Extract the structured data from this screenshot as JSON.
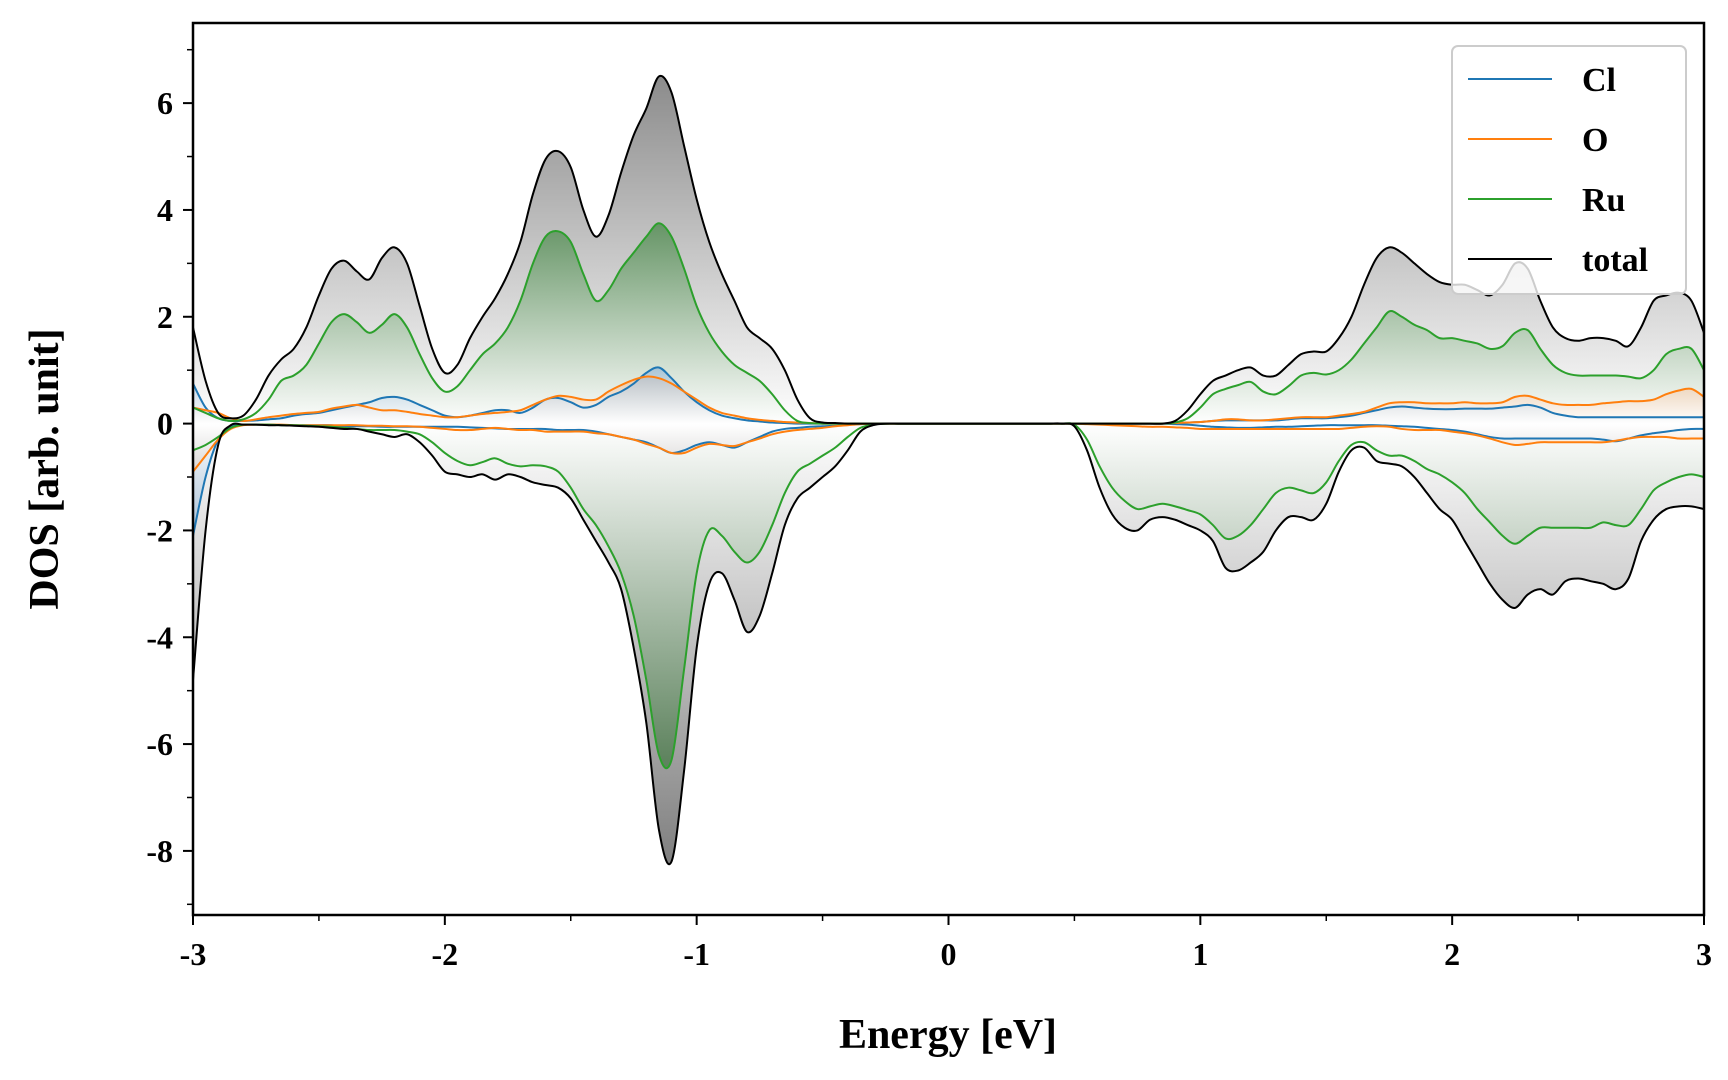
{
  "chart_data": {
    "type": "area",
    "title": "",
    "xlabel": "Energy [eV]",
    "ylabel": "DOS [arb. unit]",
    "xlim": [
      -3,
      3
    ],
    "ylim": [
      -9.2,
      7.5
    ],
    "xticks": [
      -3,
      -2,
      -1,
      0,
      1,
      2,
      3
    ],
    "xtick_labels": [
      "-3",
      "-2",
      "-1",
      "0",
      "1",
      "2",
      "3"
    ],
    "yticks": [
      -8,
      -6,
      -4,
      -2,
      0,
      2,
      4,
      6
    ],
    "ytick_labels": [
      "-8",
      "-6",
      "-4",
      "-2",
      "0",
      "2",
      "4",
      "6"
    ],
    "legend_position": "top-right",
    "grid": false,
    "x": [
      -3.0,
      -2.95,
      -2.9,
      -2.85,
      -2.8,
      -2.75,
      -2.7,
      -2.65,
      -2.6,
      -2.55,
      -2.5,
      -2.45,
      -2.4,
      -2.35,
      -2.3,
      -2.25,
      -2.2,
      -2.15,
      -2.1,
      -2.05,
      -2.0,
      -1.95,
      -1.9,
      -1.85,
      -1.8,
      -1.75,
      -1.7,
      -1.65,
      -1.6,
      -1.55,
      -1.5,
      -1.45,
      -1.4,
      -1.35,
      -1.3,
      -1.25,
      -1.2,
      -1.15,
      -1.1,
      -1.05,
      -1.0,
      -0.95,
      -0.9,
      -0.85,
      -0.8,
      -0.75,
      -0.7,
      -0.65,
      -0.6,
      -0.55,
      -0.5,
      -0.45,
      -0.4,
      -0.35,
      -0.3,
      -0.25,
      -0.2,
      -0.15,
      -0.1,
      -0.05,
      0.0,
      0.05,
      0.1,
      0.15,
      0.2,
      0.25,
      0.3,
      0.35,
      0.4,
      0.45,
      0.5,
      0.55,
      0.6,
      0.65,
      0.7,
      0.75,
      0.8,
      0.85,
      0.9,
      0.95,
      1.0,
      1.05,
      1.1,
      1.15,
      1.2,
      1.25,
      1.3,
      1.35,
      1.4,
      1.45,
      1.5,
      1.55,
      1.6,
      1.65,
      1.7,
      1.75,
      1.8,
      1.85,
      1.9,
      1.95,
      2.0,
      2.05,
      2.1,
      2.15,
      2.2,
      2.25,
      2.3,
      2.35,
      2.4,
      2.45,
      2.5,
      2.55,
      2.6,
      2.65,
      2.7,
      2.75,
      2.8,
      2.85,
      2.9,
      2.95,
      3.0
    ],
    "series": [
      {
        "name": "Cl",
        "color": "#1f77b4",
        "up": [
          0.75,
          0.3,
          0.1,
          0.05,
          0.05,
          0.06,
          0.08,
          0.1,
          0.15,
          0.18,
          0.2,
          0.25,
          0.3,
          0.35,
          0.4,
          0.48,
          0.5,
          0.45,
          0.35,
          0.25,
          0.15,
          0.12,
          0.15,
          0.2,
          0.25,
          0.25,
          0.2,
          0.3,
          0.45,
          0.48,
          0.4,
          0.3,
          0.35,
          0.5,
          0.6,
          0.75,
          0.95,
          1.05,
          0.85,
          0.6,
          0.4,
          0.25,
          0.15,
          0.1,
          0.06,
          0.04,
          0.02,
          0.01,
          0,
          0,
          0,
          0,
          0,
          0,
          0,
          0,
          0,
          0,
          0,
          0,
          0,
          0,
          0,
          0,
          0,
          0,
          0,
          0,
          0,
          0,
          0,
          0,
          0,
          0,
          0,
          0,
          0,
          0,
          0.01,
          0.02,
          0.03,
          0.05,
          0.06,
          0.06,
          0.06,
          0.06,
          0.06,
          0.08,
          0.1,
          0.1,
          0.1,
          0.12,
          0.15,
          0.2,
          0.25,
          0.3,
          0.32,
          0.3,
          0.28,
          0.27,
          0.27,
          0.28,
          0.28,
          0.28,
          0.3,
          0.32,
          0.35,
          0.3,
          0.2,
          0.15,
          0.12,
          0.12,
          0.12,
          0.12,
          0.12,
          0.12,
          0.12,
          0.12,
          0.12,
          0.12,
          0.12
        ],
        "down": [
          -2.1,
          -1.0,
          -0.3,
          -0.05,
          -0.02,
          -0.02,
          -0.02,
          -0.03,
          -0.03,
          -0.03,
          -0.03,
          -0.03,
          -0.05,
          -0.05,
          -0.05,
          -0.06,
          -0.06,
          -0.06,
          -0.06,
          -0.06,
          -0.06,
          -0.06,
          -0.07,
          -0.08,
          -0.09,
          -0.1,
          -0.1,
          -0.1,
          -0.1,
          -0.12,
          -0.12,
          -0.12,
          -0.15,
          -0.2,
          -0.25,
          -0.3,
          -0.35,
          -0.45,
          -0.55,
          -0.5,
          -0.4,
          -0.35,
          -0.4,
          -0.45,
          -0.35,
          -0.25,
          -0.15,
          -0.1,
          -0.08,
          -0.06,
          -0.05,
          -0.04,
          -0.02,
          -0.01,
          0,
          0,
          0,
          0,
          0,
          0,
          0,
          0,
          0,
          0,
          0,
          0,
          0,
          0,
          0,
          0,
          0,
          0,
          0,
          0,
          0,
          0,
          0,
          0,
          -0.01,
          -0.02,
          -0.04,
          -0.06,
          -0.07,
          -0.08,
          -0.08,
          -0.07,
          -0.06,
          -0.06,
          -0.05,
          -0.04,
          -0.03,
          -0.03,
          -0.03,
          -0.03,
          -0.03,
          -0.04,
          -0.05,
          -0.06,
          -0.08,
          -0.1,
          -0.12,
          -0.15,
          -0.2,
          -0.25,
          -0.28,
          -0.28,
          -0.28,
          -0.28,
          -0.28,
          -0.28,
          -0.28,
          -0.28,
          -0.3,
          -0.33,
          -0.28,
          -0.22,
          -0.18,
          -0.15,
          -0.12,
          -0.1,
          -0.1
        ]
      },
      {
        "name": "O",
        "color": "#ff7f0e",
        "up": [
          0.3,
          0.25,
          0.2,
          0.1,
          0.05,
          0.08,
          0.12,
          0.15,
          0.18,
          0.2,
          0.22,
          0.28,
          0.32,
          0.35,
          0.3,
          0.25,
          0.25,
          0.22,
          0.18,
          0.15,
          0.12,
          0.12,
          0.15,
          0.18,
          0.2,
          0.22,
          0.25,
          0.35,
          0.45,
          0.52,
          0.5,
          0.45,
          0.45,
          0.6,
          0.72,
          0.82,
          0.88,
          0.85,
          0.75,
          0.6,
          0.45,
          0.3,
          0.2,
          0.15,
          0.1,
          0.07,
          0.05,
          0.03,
          0.02,
          0.01,
          0,
          0,
          0,
          0,
          0,
          0,
          0,
          0,
          0,
          0,
          0,
          0,
          0,
          0,
          0,
          0,
          0,
          0,
          0,
          0,
          0,
          0,
          0,
          0,
          0,
          0,
          0,
          0,
          0.01,
          0.02,
          0.03,
          0.05,
          0.08,
          0.08,
          0.06,
          0.06,
          0.08,
          0.1,
          0.12,
          0.12,
          0.12,
          0.15,
          0.18,
          0.22,
          0.3,
          0.38,
          0.4,
          0.4,
          0.38,
          0.38,
          0.38,
          0.4,
          0.38,
          0.38,
          0.4,
          0.5,
          0.52,
          0.45,
          0.38,
          0.35,
          0.35,
          0.35,
          0.38,
          0.4,
          0.42,
          0.42,
          0.45,
          0.55,
          0.62,
          0.65,
          0.5
        ],
        "down": [
          -0.9,
          -0.6,
          -0.3,
          -0.1,
          -0.03,
          -0.02,
          -0.02,
          -0.02,
          -0.03,
          -0.03,
          -0.03,
          -0.03,
          -0.03,
          -0.03,
          -0.04,
          -0.04,
          -0.05,
          -0.05,
          -0.06,
          -0.08,
          -0.1,
          -0.12,
          -0.12,
          -0.1,
          -0.08,
          -0.1,
          -0.12,
          -0.12,
          -0.15,
          -0.15,
          -0.15,
          -0.15,
          -0.18,
          -0.2,
          -0.25,
          -0.3,
          -0.38,
          -0.45,
          -0.55,
          -0.55,
          -0.45,
          -0.38,
          -0.4,
          -0.42,
          -0.35,
          -0.28,
          -0.2,
          -0.15,
          -0.12,
          -0.1,
          -0.08,
          -0.05,
          -0.03,
          -0.01,
          0,
          0,
          0,
          0,
          0,
          0,
          0,
          0,
          0,
          0,
          0,
          0,
          0,
          0,
          0,
          0,
          0,
          -0.01,
          -0.02,
          -0.03,
          -0.04,
          -0.05,
          -0.06,
          -0.06,
          -0.07,
          -0.08,
          -0.1,
          -0.1,
          -0.1,
          -0.1,
          -0.1,
          -0.1,
          -0.1,
          -0.1,
          -0.1,
          -0.1,
          -0.1,
          -0.1,
          -0.08,
          -0.06,
          -0.05,
          -0.06,
          -0.1,
          -0.12,
          -0.12,
          -0.12,
          -0.15,
          -0.18,
          -0.22,
          -0.28,
          -0.35,
          -0.4,
          -0.38,
          -0.35,
          -0.35,
          -0.35,
          -0.35,
          -0.35,
          -0.35,
          -0.32,
          -0.28,
          -0.25,
          -0.25,
          -0.25,
          -0.28,
          -0.28,
          -0.28
        ]
      },
      {
        "name": "Ru",
        "color": "#2ca02c",
        "up": [
          0.3,
          0.2,
          0.1,
          0.05,
          0.08,
          0.2,
          0.45,
          0.8,
          0.9,
          1.1,
          1.5,
          1.9,
          2.05,
          1.9,
          1.7,
          1.85,
          2.05,
          1.8,
          1.3,
          0.85,
          0.6,
          0.7,
          1.0,
          1.3,
          1.5,
          1.8,
          2.3,
          3.0,
          3.5,
          3.6,
          3.4,
          2.8,
          2.3,
          2.5,
          2.9,
          3.2,
          3.5,
          3.75,
          3.5,
          2.9,
          2.2,
          1.7,
          1.35,
          1.1,
          0.95,
          0.8,
          0.55,
          0.25,
          0.05,
          0.01,
          0,
          0,
          0,
          0,
          0,
          0,
          0,
          0,
          0,
          0,
          0,
          0,
          0,
          0,
          0,
          0,
          0,
          0,
          0,
          0,
          0,
          0,
          0,
          0,
          0,
          0,
          0,
          0,
          0.02,
          0.1,
          0.3,
          0.55,
          0.65,
          0.72,
          0.78,
          0.6,
          0.55,
          0.7,
          0.9,
          0.95,
          0.92,
          1.0,
          1.2,
          1.5,
          1.8,
          2.1,
          2.0,
          1.85,
          1.75,
          1.6,
          1.6,
          1.55,
          1.5,
          1.4,
          1.45,
          1.7,
          1.75,
          1.4,
          1.1,
          0.95,
          0.9,
          0.9,
          0.9,
          0.9,
          0.88,
          0.85,
          1.0,
          1.3,
          1.4,
          1.4,
          1.0
        ],
        "down": [
          -0.5,
          -0.4,
          -0.25,
          -0.08,
          -0.02,
          -0.02,
          -0.02,
          -0.03,
          -0.03,
          -0.04,
          -0.05,
          -0.06,
          -0.08,
          -0.1,
          -0.12,
          -0.12,
          -0.12,
          -0.15,
          -0.2,
          -0.35,
          -0.55,
          -0.7,
          -0.78,
          -0.72,
          -0.65,
          -0.75,
          -0.8,
          -0.78,
          -0.8,
          -0.9,
          -1.2,
          -1.6,
          -1.9,
          -2.3,
          -2.8,
          -3.6,
          -4.8,
          -6.2,
          -6.3,
          -4.6,
          -2.8,
          -2.0,
          -2.1,
          -2.4,
          -2.6,
          -2.4,
          -1.9,
          -1.3,
          -0.9,
          -0.75,
          -0.6,
          -0.45,
          -0.25,
          -0.08,
          -0.02,
          0,
          0,
          0,
          0,
          0,
          0,
          0,
          0,
          0,
          0,
          0,
          0,
          0,
          0,
          0,
          -0.02,
          -0.3,
          -0.8,
          -1.2,
          -1.45,
          -1.6,
          -1.55,
          -1.5,
          -1.55,
          -1.62,
          -1.7,
          -1.9,
          -2.15,
          -2.1,
          -1.9,
          -1.6,
          -1.3,
          -1.2,
          -1.25,
          -1.3,
          -1.1,
          -0.7,
          -0.4,
          -0.35,
          -0.5,
          -0.6,
          -0.6,
          -0.7,
          -0.85,
          -0.95,
          -1.1,
          -1.3,
          -1.6,
          -1.85,
          -2.1,
          -2.25,
          -2.1,
          -1.95,
          -1.95,
          -1.95,
          -1.95,
          -1.95,
          -1.85,
          -1.9,
          -1.9,
          -1.6,
          -1.25,
          -1.1,
          -1.0,
          -0.95,
          -1.0
        ]
      },
      {
        "name": "total",
        "color": "#000000",
        "up": [
          1.8,
          0.8,
          0.2,
          0.1,
          0.15,
          0.45,
          0.9,
          1.2,
          1.4,
          1.8,
          2.4,
          2.9,
          3.05,
          2.85,
          2.7,
          3.1,
          3.3,
          3.0,
          2.2,
          1.4,
          0.95,
          1.1,
          1.6,
          2.0,
          2.35,
          2.8,
          3.4,
          4.3,
          4.95,
          5.1,
          4.8,
          4.0,
          3.5,
          3.9,
          4.7,
          5.4,
          5.9,
          6.5,
          6.2,
          5.2,
          4.2,
          3.4,
          2.8,
          2.3,
          1.8,
          1.6,
          1.4,
          1.0,
          0.45,
          0.1,
          0.02,
          0.01,
          0,
          0,
          0,
          0,
          0,
          0,
          0,
          0,
          0,
          0,
          0,
          0,
          0,
          0,
          0,
          0,
          0,
          0,
          0,
          0,
          0,
          0,
          0,
          0,
          0,
          0,
          0.05,
          0.25,
          0.55,
          0.8,
          0.9,
          1.0,
          1.05,
          0.9,
          0.9,
          1.1,
          1.3,
          1.35,
          1.35,
          1.6,
          2.0,
          2.6,
          3.1,
          3.3,
          3.2,
          3.0,
          2.8,
          2.65,
          2.6,
          2.6,
          2.5,
          2.4,
          2.6,
          3.0,
          2.9,
          2.3,
          1.8,
          1.6,
          1.55,
          1.6,
          1.6,
          1.55,
          1.45,
          1.8,
          2.3,
          2.4,
          2.45,
          2.3,
          1.7
        ],
        "down": [
          -4.8,
          -2.0,
          -0.4,
          -0.03,
          -0.02,
          -0.02,
          -0.03,
          -0.03,
          -0.04,
          -0.05,
          -0.06,
          -0.08,
          -0.1,
          -0.1,
          -0.15,
          -0.2,
          -0.25,
          -0.2,
          -0.35,
          -0.6,
          -0.9,
          -0.95,
          -1.0,
          -0.95,
          -1.05,
          -0.95,
          -1.0,
          -1.1,
          -1.15,
          -1.2,
          -1.4,
          -1.8,
          -2.2,
          -2.6,
          -3.1,
          -4.2,
          -5.6,
          -7.6,
          -8.2,
          -6.5,
          -4.2,
          -3.0,
          -2.8,
          -3.3,
          -3.9,
          -3.6,
          -2.8,
          -1.9,
          -1.4,
          -1.2,
          -1.0,
          -0.8,
          -0.5,
          -0.15,
          -0.03,
          0,
          0,
          0,
          0,
          0,
          0,
          0,
          0,
          0,
          0,
          0,
          0,
          0,
          0,
          0,
          -0.05,
          -0.5,
          -1.2,
          -1.7,
          -1.95,
          -2.0,
          -1.8,
          -1.75,
          -1.8,
          -1.9,
          -2.0,
          -2.2,
          -2.7,
          -2.75,
          -2.6,
          -2.4,
          -2.0,
          -1.75,
          -1.75,
          -1.8,
          -1.5,
          -0.9,
          -0.5,
          -0.45,
          -0.7,
          -0.75,
          -0.8,
          -1.0,
          -1.3,
          -1.6,
          -1.8,
          -2.2,
          -2.6,
          -3.0,
          -3.3,
          -3.45,
          -3.2,
          -3.1,
          -3.2,
          -2.95,
          -2.9,
          -2.95,
          -3.0,
          -3.1,
          -2.9,
          -2.2,
          -1.8,
          -1.6,
          -1.55,
          -1.55,
          -1.6
        ]
      }
    ]
  }
}
